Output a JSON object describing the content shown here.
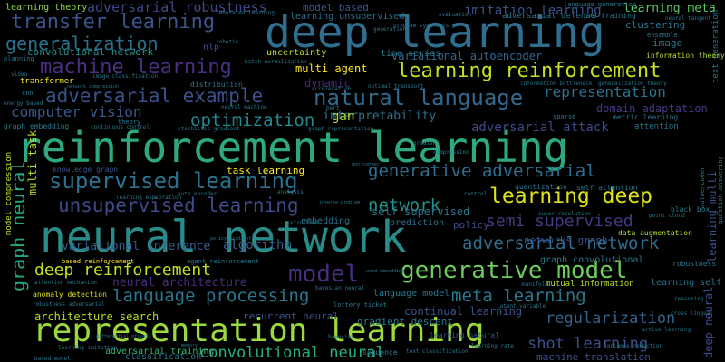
{
  "words": [
    {
      "text": "reinforcement learning",
      "color": "#2ea87e"
    },
    {
      "text": "neural network",
      "color": "#2a8c8a"
    },
    {
      "text": "deep learning",
      "color": "#2f6e8e"
    },
    {
      "text": "representation learning",
      "color": "#9bd93c"
    },
    {
      "text": "generative model",
      "color": "#6ccd5a"
    },
    {
      "text": "machine learning",
      "color": "#4a2f82"
    },
    {
      "text": "learning reinforcement",
      "color": "#c7e020"
    },
    {
      "text": "natural language",
      "color": "#31688e"
    },
    {
      "text": "supervised learning",
      "color": "#2c728e"
    },
    {
      "text": "unsupervised learning",
      "color": "#3e4a89"
    },
    {
      "text": "generative adversarial",
      "color": "#2e6e8e"
    },
    {
      "text": "adversarial example",
      "color": "#3b518b"
    },
    {
      "text": "learning deep",
      "color": "#dde318"
    },
    {
      "text": "adversarial network",
      "color": "#2f6c8e"
    },
    {
      "text": "transfer learning",
      "color": "#3a548c"
    },
    {
      "text": "generalization",
      "color": "#2d708e"
    },
    {
      "text": "optimization",
      "color": "#23898e"
    },
    {
      "text": "computer vision",
      "color": "#38588c"
    },
    {
      "text": "graph neural",
      "color": "#22a785"
    },
    {
      "text": "deep reinforcement",
      "color": "#c2df23"
    },
    {
      "text": "language processing",
      "color": "#2a768e"
    },
    {
      "text": "meta learning",
      "color": "#2a788e"
    },
    {
      "text": "regularization",
      "color": "#33638d"
    },
    {
      "text": "model",
      "color": "#46307e"
    },
    {
      "text": "network",
      "color": "#20928c"
    },
    {
      "text": "semi supervised",
      "color": "#453781"
    },
    {
      "text": "representation",
      "color": "#2c738e"
    },
    {
      "text": "convolutional neural",
      "color": "#29af7f"
    },
    {
      "text": "shot learning",
      "color": "#3d4e8a"
    },
    {
      "text": "adversarial robustness",
      "color": "#3f4788"
    },
    {
      "text": "variational inference",
      "color": "#355e8d"
    },
    {
      "text": "architecture search",
      "color": "#b8de29"
    },
    {
      "text": "neural architecture",
      "color": "#472d7b"
    },
    {
      "text": "adversarial attack",
      "color": "#3f4889"
    },
    {
      "text": "algorithm",
      "color": "#34618d"
    },
    {
      "text": "learning reinforcement",
      "color": "#3b528b"
    },
    {
      "text": "imitation learning",
      "color": "#3b528b"
    },
    {
      "text": "learning meta",
      "color": "#5ec962"
    },
    {
      "text": "domain adaptation",
      "color": "#443a83"
    },
    {
      "text": "variational autoencoder",
      "color": "#31688e"
    },
    {
      "text": "interpretability",
      "color": "#2c728e"
    },
    {
      "text": "convolutional network",
      "color": "#21918c"
    },
    {
      "text": "learning theory",
      "color": "#8fd744"
    },
    {
      "text": "learning unsupervised",
      "color": "#2e6f8e"
    },
    {
      "text": "model based",
      "color": "#39568c"
    },
    {
      "text": "multi agent",
      "color": "#fde725"
    },
    {
      "text": "self supervised",
      "color": "#2a788e"
    },
    {
      "text": "uncertainty",
      "color": "#b5de2b"
    },
    {
      "text": "clustering",
      "color": "#2c728e"
    },
    {
      "text": "time series",
      "color": "#2a788e"
    },
    {
      "text": "gan",
      "color": "#addc30"
    },
    {
      "text": "dynamic",
      "color": "#482878"
    },
    {
      "text": "nlp",
      "color": "#3e4989"
    },
    {
      "text": "continual learning",
      "color": "#3b528b"
    },
    {
      "text": "task learning",
      "color": "#fde725"
    },
    {
      "text": "multi task",
      "color": "#b5de2b"
    },
    {
      "text": "policy",
      "color": "#3e4c8a"
    },
    {
      "text": "embedding",
      "color": "#2d708e"
    },
    {
      "text": "prediction",
      "color": "#2c728e"
    },
    {
      "text": "networks graph",
      "color": "#3b528b"
    },
    {
      "text": "recurrent neural",
      "color": "#3b528b"
    },
    {
      "text": "gradient descent",
      "color": "#2a788e"
    },
    {
      "text": "image",
      "color": "#2a788e"
    },
    {
      "text": "learning self",
      "color": "#2c728e"
    },
    {
      "text": "graph convolutional",
      "color": "#2a788e"
    },
    {
      "text": "language model",
      "color": "#2a788e"
    },
    {
      "text": "adversarial training",
      "color": "#35b779"
    },
    {
      "text": "classification",
      "color": "#2a788e"
    },
    {
      "text": "machine translation",
      "color": "#3b528b"
    },
    {
      "text": "learning natural",
      "color": "#3b528b"
    },
    {
      "text": "learning multi",
      "color": "#3b528b"
    },
    {
      "text": "deep neural",
      "color": "#3e4989"
    },
    {
      "text": "text generation",
      "color": "#2a788e"
    },
    {
      "text": "model compression",
      "color": "#b5de2b"
    },
    {
      "text": "mutual information",
      "color": "#b5de2b"
    },
    {
      "text": "anomaly detection",
      "color": "#dde318"
    },
    {
      "text": "attention",
      "color": "#2a788e"
    },
    {
      "text": "robustness",
      "color": "#2a788e"
    },
    {
      "text": "metric learning",
      "color": "#2a788e"
    },
    {
      "text": "based reinforcement",
      "color": "#fde725"
    },
    {
      "text": "agent reinforcement",
      "color": "#2a788e"
    },
    {
      "text": "data augmentation",
      "color": "#b5de2b"
    },
    {
      "text": "quantization",
      "color": "#2a788e"
    },
    {
      "text": "self attention",
      "color": "#2a788e"
    },
    {
      "text": "transformer",
      "color": "#fde725"
    },
    {
      "text": "graph embedding",
      "color": "#2a788e"
    },
    {
      "text": "knowledge graph",
      "color": "#3b528b"
    },
    {
      "text": "learning exploration",
      "color": "#2a788e"
    },
    {
      "text": "adversarial defense",
      "color": "#2a788e"
    },
    {
      "text": "information theory",
      "color": "#b5de2b"
    },
    {
      "text": "information bottleneck",
      "color": "#2a788e"
    },
    {
      "text": "generalization theory",
      "color": "#2a788e"
    },
    {
      "text": "sparse",
      "color": "#2a788e"
    },
    {
      "text": "theory",
      "color": "#2a788e"
    },
    {
      "text": "distribution",
      "color": "#2a788e"
    },
    {
      "text": "planning",
      "color": "#2a788e"
    },
    {
      "text": "federated learning",
      "color": "#2a788e"
    },
    {
      "text": "evaluation",
      "color": "#2a788e"
    },
    {
      "text": "pre training",
      "color": "#2a788e"
    },
    {
      "text": "neural tangent",
      "color": "#2a788e"
    },
    {
      "text": "language generation",
      "color": "#2a788e"
    },
    {
      "text": "ensemble",
      "color": "#2a788e"
    },
    {
      "text": "active learning",
      "color": "#2a788e"
    },
    {
      "text": "reasoning",
      "color": "#2a788e"
    },
    {
      "text": "cross lingual",
      "color": "#2a788e"
    },
    {
      "text": "variance reduction",
      "color": "#2a788e"
    },
    {
      "text": "point cloud",
      "color": "#2a788e"
    },
    {
      "text": "black box",
      "color": "#2a788e"
    },
    {
      "text": "super resolution",
      "color": "#2a788e"
    },
    {
      "text": "lottery ticket",
      "color": "#2a788e"
    },
    {
      "text": "bayesian",
      "color": "#2a788e"
    },
    {
      "text": "sequence",
      "color": "#2a788e"
    },
    {
      "text": "cnn",
      "color": "#2a788e"
    },
    {
      "text": "video",
      "color": "#2a788e"
    },
    {
      "text": "robotic",
      "color": "#2a788e"
    },
    {
      "text": "program synthesis",
      "color": "#2a788e"
    },
    {
      "text": "generation",
      "color": "#2a788e"
    },
    {
      "text": "image classification",
      "color": "#2a788e"
    },
    {
      "text": "network compression",
      "color": "#2a788e"
    },
    {
      "text": "batch normalization",
      "color": "#2a788e"
    },
    {
      "text": "energy based",
      "color": "#2a788e"
    },
    {
      "text": "continuous control",
      "color": "#2a788e"
    },
    {
      "text": "stochastic gradient",
      "color": "#2a788e"
    },
    {
      "text": "neural machine",
      "color": "#2a788e"
    },
    {
      "text": "bert",
      "color": "#2a788e"
    },
    {
      "text": "acceleration",
      "color": "#2a788e"
    },
    {
      "text": "optimal transport",
      "color": "#2a788e"
    },
    {
      "text": "graph representation",
      "color": "#2a788e"
    },
    {
      "text": "compression",
      "color": "#2a788e"
    },
    {
      "text": "non convex",
      "color": "#2a788e"
    },
    {
      "text": "auto encoder",
      "color": "#2a788e"
    },
    {
      "text": "inverse problem",
      "color": "#2a788e"
    },
    {
      "text": "control",
      "color": "#2a788e"
    },
    {
      "text": "analysis",
      "color": "#2a788e"
    },
    {
      "text": "structure",
      "color": "#2a788e"
    },
    {
      "text": "gradient",
      "color": "#2a788e"
    },
    {
      "text": "policy gradient",
      "color": "#2a788e"
    },
    {
      "text": "word embedding",
      "color": "#2a788e"
    },
    {
      "text": "latent variable",
      "color": "#2a788e"
    },
    {
      "text": "manifold",
      "color": "#2a788e"
    },
    {
      "text": "bayesian neural",
      "color": "#2a788e"
    },
    {
      "text": "attention mechanism",
      "color": "#2a788e"
    },
    {
      "text": "differential privacy",
      "color": "#2a788e"
    },
    {
      "text": "based model",
      "color": "#2a788e"
    },
    {
      "text": "robustness adversarial",
      "color": "#2a788e"
    },
    {
      "text": "learning imitation",
      "color": "#2a788e"
    },
    {
      "text": "memory",
      "color": "#2a788e"
    },
    {
      "text": "text classification",
      "color": "#2a788e"
    },
    {
      "text": "learning rate",
      "color": "#2a788e"
    },
    {
      "text": "question answering",
      "color": "#2a788e"
    },
    {
      "text": "autoencoder",
      "color": "#2a788e"
    }
  ]
}
